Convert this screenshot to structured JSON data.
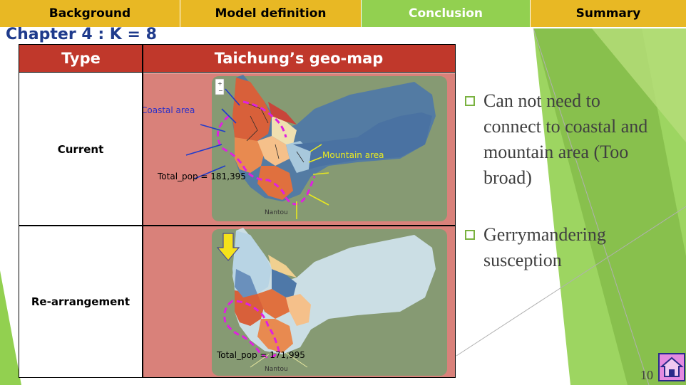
{
  "nav": {
    "tabs": [
      {
        "label": "Background"
      },
      {
        "label": "Model definition"
      },
      {
        "label": "Conclusion"
      },
      {
        "label": "Summary"
      }
    ]
  },
  "slide": {
    "chapter_title": "Chapter 4 : K = 8",
    "page_number": "10"
  },
  "table": {
    "headers": [
      "Type",
      "Taichung’s geo-map"
    ],
    "rows": [
      {
        "type": "Current",
        "pop_label": "Total_pop = 181,395",
        "coastal_label": "Coastal area",
        "mountain_label": "Mountain area",
        "place_label": "Nantou"
      },
      {
        "type": "Re-arrangement",
        "pop_label": "Total_pop = 171,995",
        "place_label": "Nantou"
      }
    ]
  },
  "bullets": [
    "Can not need to connect to coastal and mountain area (Too broad)",
    "Gerrymandering susception"
  ],
  "colors": {
    "nav_gold": "#e8b824",
    "nav_green": "#92d050",
    "header_red": "#c0382b",
    "chapter_blue": "#1f3b8c",
    "highlight_magenta": "#e020e0"
  },
  "icons": [
    "home-icon",
    "checkbox-bullet-icon",
    "down-arrow-icon",
    "zoom-in-icon",
    "zoom-out-icon"
  ]
}
